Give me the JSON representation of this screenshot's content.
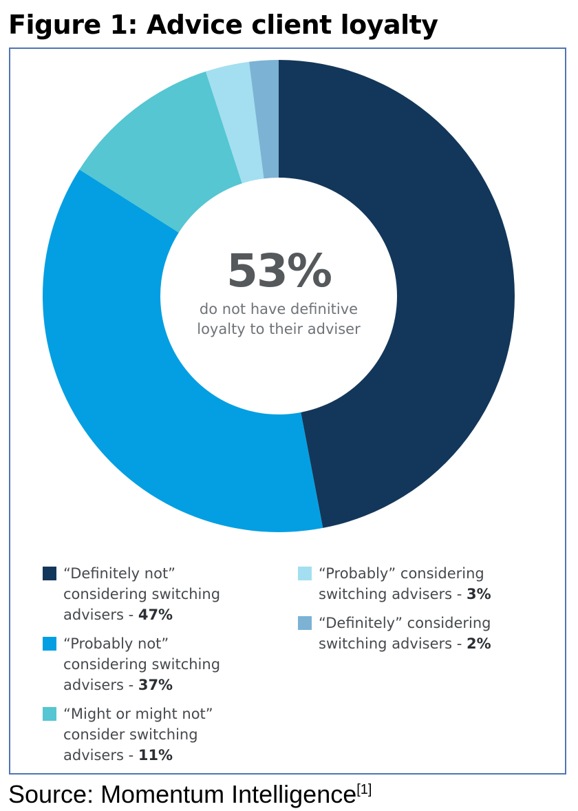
{
  "figure": {
    "title": "Figure 1: Advice client loyalty",
    "source": "Source: Momentum Intelligence",
    "source_ref": "[1]"
  },
  "chart_data": {
    "type": "pie",
    "variant": "donut",
    "title": "Figure 1: Advice client loyalty",
    "center_value": "53%",
    "center_text_line1": "do not have definitive",
    "center_text_line2": "loyalty to their adviser",
    "slices": [
      {
        "label": "“Definitely not” considering switching advisers",
        "value": 47,
        "value_label": "47%",
        "color": "#13375a",
        "legend_lines": [
          "“Definitely not”",
          "considering switching",
          "advisers - "
        ]
      },
      {
        "label": "“Probably not” considering switching advisers",
        "value": 37,
        "value_label": "37%",
        "color": "#039fe2",
        "legend_lines": [
          "“Probably not”",
          "considering switching",
          "advisers - "
        ]
      },
      {
        "label": "“Might or might not” consider switching advisers",
        "value": 11,
        "value_label": "11%",
        "color": "#55c6d2",
        "legend_lines": [
          "“Might or might not”",
          "consider switching",
          "advisers - "
        ]
      },
      {
        "label": "“Probably” considering switching advisers",
        "value": 3,
        "value_label": "3%",
        "color": "#a3dff0",
        "legend_lines": [
          "“Probably” considering",
          "switching advisers - "
        ]
      },
      {
        "label": "“Definitely” considering switching advisers",
        "value": 2,
        "value_label": "2%",
        "color": "#7cb2d4",
        "legend_lines": [
          "“Definitely” considering",
          "switching advisers - "
        ]
      }
    ]
  }
}
